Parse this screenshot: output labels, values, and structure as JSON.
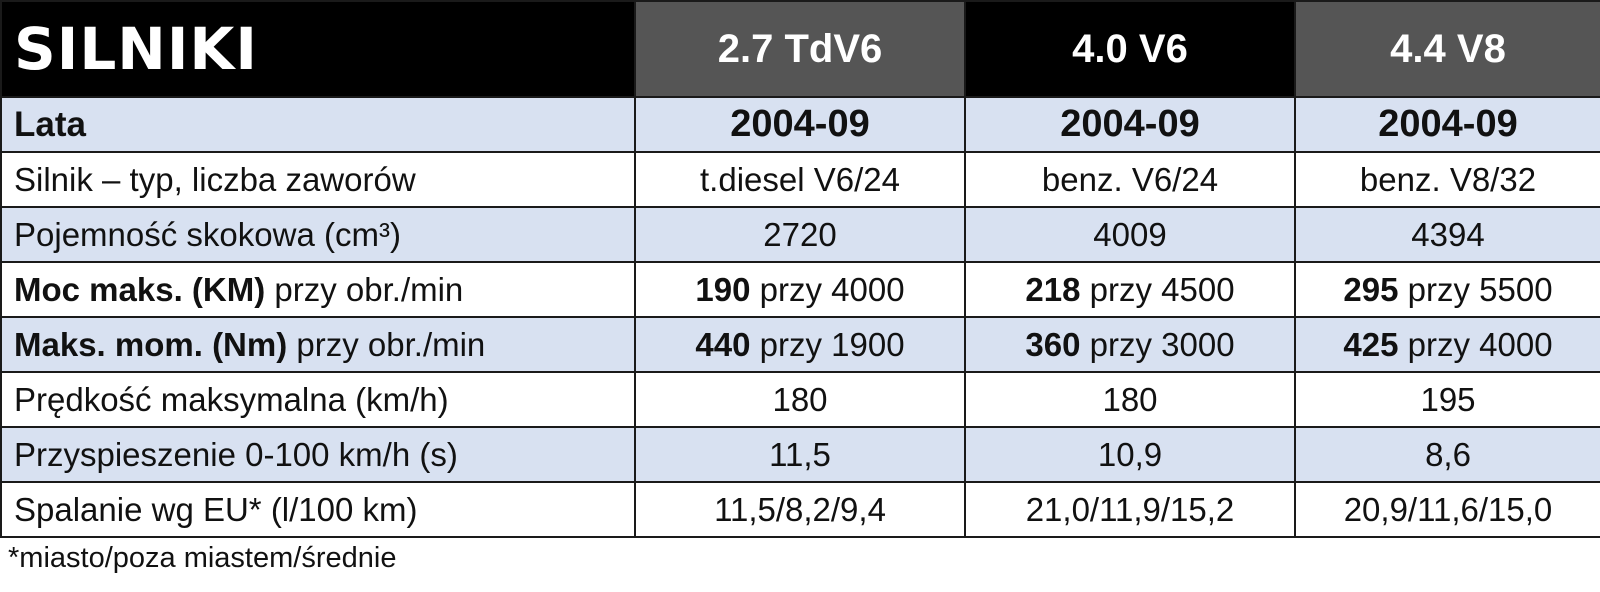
{
  "header": {
    "title": "SILNIKI",
    "engines": [
      "2.7 TdV6",
      "4.0 V6",
      "4.4 V8"
    ]
  },
  "rows": [
    {
      "label": "Lata",
      "values": [
        "2004-09",
        "2004-09",
        "2004-09"
      ]
    },
    {
      "label": "Silnik – typ, liczba zaworów",
      "values": [
        "t.diesel V6/24",
        "benz. V6/24",
        "benz. V8/32"
      ]
    },
    {
      "label": "Pojemność skokowa (cm³)",
      "values": [
        "2720",
        "4009",
        "4394"
      ]
    },
    {
      "label_bold": "Moc maks. (KM)",
      "label_rest": " przy obr./min",
      "values": [
        {
          "bold": "190",
          "rest": " przy 4000"
        },
        {
          "bold": "218",
          "rest": " przy 4500"
        },
        {
          "bold": "295",
          "rest": " przy 5500"
        }
      ]
    },
    {
      "label_bold": "Maks. mom. (Nm)",
      "label_rest": " przy obr./min",
      "values": [
        {
          "bold": "440",
          "rest": " przy 1900"
        },
        {
          "bold": "360",
          "rest": " przy 3000"
        },
        {
          "bold": "425",
          "rest": " przy 4000"
        }
      ]
    },
    {
      "label": "Prędkość maksymalna (km/h)",
      "values": [
        "180",
        "180",
        "195"
      ]
    },
    {
      "label": "Przyspieszenie 0-100 km/h (s)",
      "values": [
        "11,5",
        "10,9",
        "8,6"
      ]
    },
    {
      "label": "Spalanie wg EU* (l/100 km)",
      "values": [
        "11,5/8,2/9,4",
        "21,0/11,9/15,2",
        "20,9/11,6/15,0"
      ]
    }
  ],
  "footnote": "*miasto/poza miastem/średnie",
  "colors": {
    "header_black": "#000000",
    "header_grey": "#555555",
    "row_blue": "#d8e1f1",
    "row_white": "#ffffff"
  }
}
